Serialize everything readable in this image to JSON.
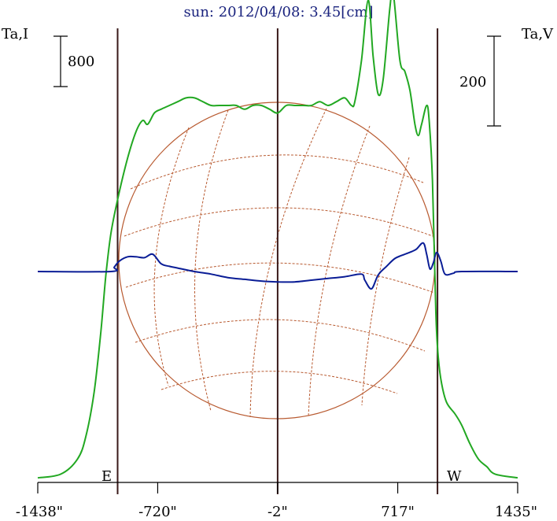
{
  "chart_data": {
    "type": "line",
    "title": "sun: 2012/04/08: 3.45[cm]",
    "left_axis_label": "Ta,I",
    "right_axis_label": "Ta,V",
    "left_scale_bar": "800",
    "right_scale_bar": "200",
    "east_label": "E",
    "west_label": "W",
    "x_tick_labels": [
      "-1438\"",
      "-720\"",
      "-2\"",
      "717\"",
      "1435\""
    ],
    "x_ticks": [
      -1438,
      -720,
      -2,
      717,
      1435
    ],
    "xlim": [
      -1438,
      1435
    ],
    "vertical_lines_at": [
      -960,
      -2,
      955
    ],
    "grid": false,
    "colors": {
      "intensity": "#22a822",
      "polarization": "#0a1d96",
      "markers": "#3a1a1a",
      "disk": "#b85a30",
      "title": "#1a237e"
    },
    "series": [
      {
        "key": "I",
        "points": [
          [
            -1438,
            0.01
          ],
          [
            -1300,
            0.02
          ],
          [
            -1200,
            0.06
          ],
          [
            -1150,
            0.12
          ],
          [
            -1100,
            0.24
          ],
          [
            -1060,
            0.4
          ],
          [
            -1030,
            0.55
          ],
          [
            -1000,
            0.66
          ],
          [
            -960,
            0.75
          ],
          [
            -900,
            0.86
          ],
          [
            -850,
            0.93
          ],
          [
            -810,
            0.96
          ],
          [
            -780,
            0.95
          ],
          [
            -740,
            0.98
          ],
          [
            -700,
            0.99
          ],
          [
            -650,
            1.0
          ],
          [
            -600,
            1.01
          ],
          [
            -550,
            1.02
          ],
          [
            -500,
            1.02
          ],
          [
            -450,
            1.01
          ],
          [
            -400,
            1.0
          ],
          [
            -350,
            1.0
          ],
          [
            -300,
            1.0
          ],
          [
            -250,
            1.0
          ],
          [
            -200,
            0.99
          ],
          [
            -150,
            1.0
          ],
          [
            -100,
            1.0
          ],
          [
            -50,
            0.99
          ],
          [
            -2,
            0.98
          ],
          [
            50,
            1.0
          ],
          [
            100,
            1.0
          ],
          [
            150,
            1.0
          ],
          [
            200,
            1.0
          ],
          [
            250,
            1.01
          ],
          [
            300,
            1.0
          ],
          [
            350,
            1.01
          ],
          [
            400,
            1.02
          ],
          [
            440,
            1.0
          ],
          [
            460,
            1.01
          ],
          [
            500,
            1.12
          ],
          [
            540,
            1.28
          ],
          [
            570,
            1.13
          ],
          [
            600,
            1.03
          ],
          [
            630,
            1.07
          ],
          [
            670,
            1.26
          ],
          [
            690,
            1.3
          ],
          [
            730,
            1.12
          ],
          [
            760,
            1.09
          ],
          [
            790,
            1.04
          ],
          [
            820,
            0.95
          ],
          [
            840,
            0.92
          ],
          [
            860,
            0.95
          ],
          [
            890,
            1.0
          ],
          [
            905,
            0.96
          ],
          [
            925,
            0.8
          ],
          [
            945,
            0.45
          ],
          [
            960,
            0.33
          ],
          [
            980,
            0.26
          ],
          [
            1010,
            0.21
          ],
          [
            1060,
            0.18
          ],
          [
            1100,
            0.15
          ],
          [
            1150,
            0.1
          ],
          [
            1200,
            0.06
          ],
          [
            1250,
            0.04
          ],
          [
            1300,
            0.02
          ],
          [
            1435,
            0.01
          ]
        ]
      },
      {
        "key": "V",
        "points": [
          [
            -1438,
            0
          ],
          [
            -1000,
            0
          ],
          [
            -980,
            0.05
          ],
          [
            -950,
            0.12
          ],
          [
            -900,
            0.17
          ],
          [
            -850,
            0.17
          ],
          [
            -800,
            0.16
          ],
          [
            -750,
            0.2
          ],
          [
            -700,
            0.09
          ],
          [
            -650,
            0.06
          ],
          [
            -600,
            0.04
          ],
          [
            -500,
            0.0
          ],
          [
            -400,
            -0.03
          ],
          [
            -300,
            -0.07
          ],
          [
            -200,
            -0.09
          ],
          [
            -100,
            -0.11
          ],
          [
            -2,
            -0.12
          ],
          [
            100,
            -0.12
          ],
          [
            200,
            -0.1
          ],
          [
            300,
            -0.08
          ],
          [
            400,
            -0.06
          ],
          [
            500,
            -0.03
          ],
          [
            520,
            -0.1
          ],
          [
            560,
            -0.2
          ],
          [
            600,
            -0.04
          ],
          [
            650,
            0.06
          ],
          [
            700,
            0.15
          ],
          [
            760,
            0.2
          ],
          [
            800,
            0.23
          ],
          [
            830,
            0.26
          ],
          [
            870,
            0.33
          ],
          [
            890,
            0.2
          ],
          [
            910,
            0.03
          ],
          [
            930,
            0.1
          ],
          [
            950,
            0.22
          ],
          [
            975,
            0.12
          ],
          [
            1000,
            -0.03
          ],
          [
            1050,
            -0.02
          ],
          [
            1100,
            0
          ],
          [
            1435,
            0
          ]
        ]
      }
    ]
  }
}
